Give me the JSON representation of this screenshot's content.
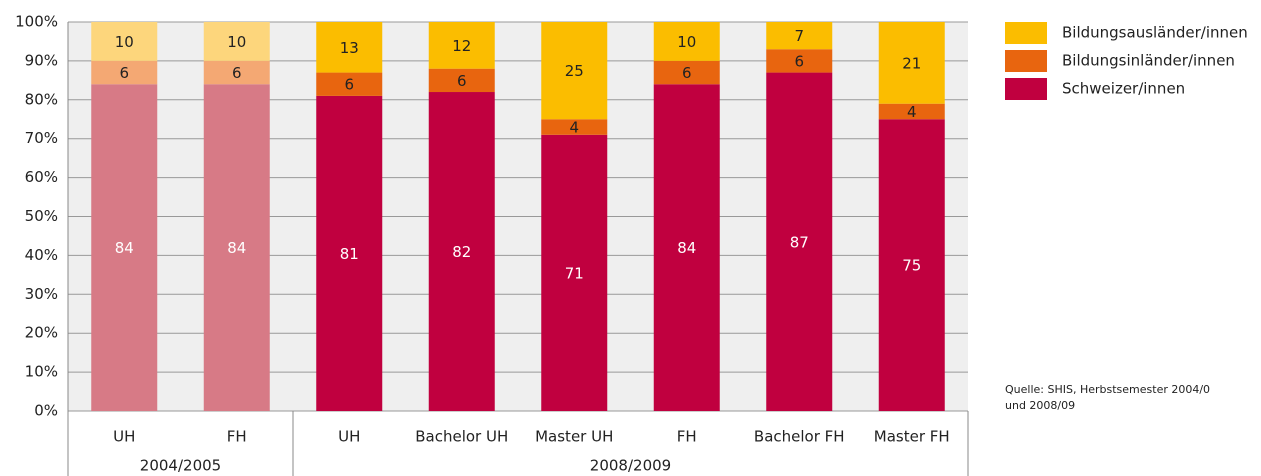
{
  "chart_data": {
    "type": "stacked_bar",
    "categories": [
      "UH",
      "FH",
      "UH",
      "Bachelor UH",
      "Master UH",
      "FH",
      "Bachelor FH",
      "Master FH"
    ],
    "category_groups": [
      "2004/2005",
      "2004/2005",
      "2008/2009",
      "2008/2009",
      "2008/2009",
      "2008/2009",
      "2008/2009",
      "2008/2009"
    ],
    "series": [
      {
        "name": "Schweizer/innen",
        "color": "#c0003f",
        "colors": [
          "#d77a86",
          "#d77a86",
          "#c0003f",
          "#c0003f",
          "#c0003f",
          "#c0003f",
          "#c0003f",
          "#c0003f"
        ],
        "values": [
          84,
          84,
          81,
          82,
          71,
          84,
          87,
          75
        ]
      },
      {
        "name": "Bildungsinländer/innen",
        "color": "#e8650f",
        "colors": [
          "#f4a873",
          "#f4a873",
          "#e8650f",
          "#e8650f",
          "#e8650f",
          "#e8650f",
          "#e8650f",
          "#e8650f"
        ],
        "values": [
          6,
          6,
          6,
          6,
          4,
          6,
          6,
          4
        ]
      },
      {
        "name": "Bildungsausländer/innen",
        "color": "#fbbd00",
        "colors": [
          "#fdd67c",
          "#fdd67c",
          "#fbbd00",
          "#fbbd00",
          "#fbbd00",
          "#fbbd00",
          "#fbbd00",
          "#fbbd00"
        ],
        "values": [
          10,
          10,
          13,
          12,
          25,
          10,
          7,
          21
        ]
      }
    ],
    "ylim": [
      0,
      100
    ],
    "yticks": [
      {
        "value": 0,
        "label": "0%"
      },
      {
        "value": 10,
        "label": "10%"
      },
      {
        "value": 20,
        "label": "20%"
      },
      {
        "value": 30,
        "label": "30%"
      },
      {
        "value": 40,
        "label": "40%"
      },
      {
        "value": 50,
        "label": "50%"
      },
      {
        "value": 60,
        "label": "60%"
      },
      {
        "value": 70,
        "label": "70%"
      },
      {
        "value": 80,
        "label": "80%"
      },
      {
        "value": 90,
        "label": "90%"
      },
      {
        "value": 100,
        "label": "100%"
      }
    ],
    "grid": true,
    "legend": "right",
    "source": [
      "Quelle: SHIS, Herbstsemester 2004/0",
      "und 2008/09"
    ]
  }
}
